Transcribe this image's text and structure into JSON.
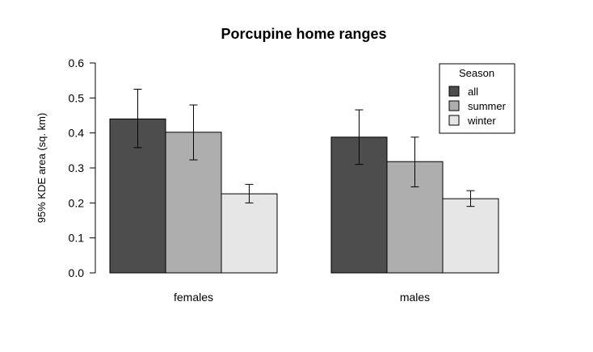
{
  "chart_data": {
    "type": "bar",
    "title": "Porcupine home ranges",
    "ylabel": "95% KDE area (sq. km)",
    "xlabel": "",
    "ylim": [
      0,
      0.6
    ],
    "yticks": [
      "0.0",
      "0.1",
      "0.2",
      "0.3",
      "0.4",
      "0.5",
      "0.6"
    ],
    "grid": false,
    "categories": [
      "females",
      "males"
    ],
    "legend": {
      "title": "Season",
      "position": "top-right"
    },
    "series": [
      {
        "name": "all",
        "color": "#4d4d4d",
        "values": [
          0.44,
          0.388
        ],
        "err_low": [
          0.358,
          0.31
        ],
        "err_high": [
          0.525,
          0.466
        ]
      },
      {
        "name": "summer",
        "color": "#aeaeae",
        "values": [
          0.402,
          0.318
        ],
        "err_low": [
          0.323,
          0.246
        ],
        "err_high": [
          0.48,
          0.388
        ]
      },
      {
        "name": "winter",
        "color": "#e6e6e6",
        "values": [
          0.226,
          0.212
        ],
        "err_low": [
          0.2,
          0.19
        ],
        "err_high": [
          0.253,
          0.235
        ]
      }
    ]
  }
}
